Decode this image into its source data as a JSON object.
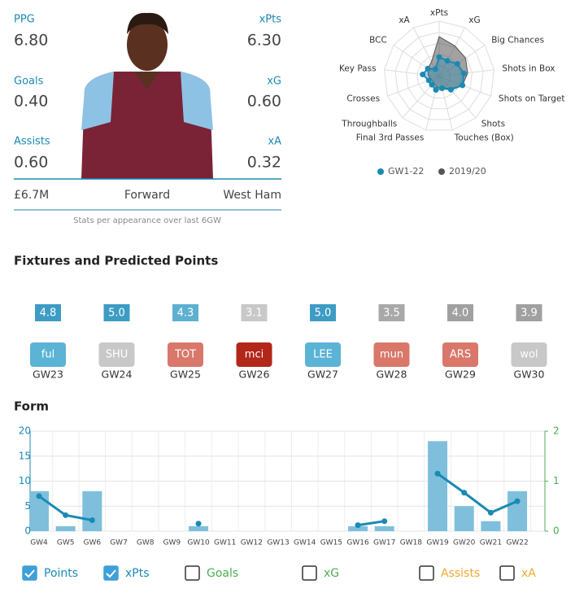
{
  "stats": [
    {
      "label": "PPG",
      "value": "6.80"
    },
    {
      "label": "xPts",
      "value": "6.30"
    },
    {
      "label": "Goals",
      "value": "0.40"
    },
    {
      "label": "xG",
      "value": "0.60"
    },
    {
      "label": "Assists",
      "value": "0.60"
    },
    {
      "label": "xA",
      "value": "0.32"
    }
  ],
  "player": {
    "price": "£6.7M",
    "position": "Forward",
    "team": "West Ham",
    "note": "Stats per appearance over last 6GW"
  },
  "fixtures": {
    "title": "Fixtures and Predicted Points",
    "items": [
      {
        "points": "4.8",
        "points_color": "#3d9cc4",
        "opponent": "ful",
        "color": "#5bb3d5",
        "gw": "GW23"
      },
      {
        "points": "5.0",
        "points_color": "#3d9cc4",
        "opponent": "SHU",
        "color": "#c8c8c8",
        "gw": "GW24"
      },
      {
        "points": "4.3",
        "points_color": "#5eb0d0",
        "opponent": "TOT",
        "color": "#d9776b",
        "gw": "GW25"
      },
      {
        "points": "3.1",
        "points_color": "#c8c8c8",
        "opponent": "mci",
        "color": "#b3261a",
        "gw": "GW26"
      },
      {
        "points": "5.0",
        "points_color": "#3d9cc4",
        "opponent": "LEE",
        "color": "#5bb3d5",
        "gw": "GW27"
      },
      {
        "points": "3.5",
        "points_color": "#a8a8a8",
        "opponent": "mun",
        "color": "#d9776b",
        "gw": "GW28"
      },
      {
        "points": "4.0",
        "points_color": "#a0a0a0",
        "opponent": "ARS",
        "color": "#d9776b",
        "gw": "GW29"
      },
      {
        "points": "3.9",
        "points_color": "#a0a0a0",
        "opponent": "wol",
        "color": "#c8c8c8",
        "gw": "GW30"
      }
    ]
  },
  "chart_data": [
    {
      "type": "radar",
      "axes": [
        "xPts",
        "xG",
        "Big Chances",
        "Shots in Box",
        "Shots on Target",
        "Shots",
        "Touches (Box)",
        "Final 3rd Passes",
        "Throughballs",
        "Crosses",
        "Key Pass",
        "BCC",
        "xA"
      ],
      "rlim": [
        0,
        100
      ],
      "series": [
        {
          "name": "GW1-22",
          "color": "#1a8ab4",
          "values": [
            35,
            32,
            40,
            45,
            45,
            32,
            22,
            25,
            20,
            20,
            30,
            25,
            15
          ]
        },
        {
          "name": "2019/20",
          "color": "#555555",
          "values": [
            72,
            62,
            58,
            52,
            45,
            30,
            20,
            20,
            15,
            15,
            20,
            25,
            30
          ]
        }
      ]
    },
    {
      "type": "bar_line",
      "title": "Form",
      "categories": [
        "GW4",
        "GW5",
        "GW6",
        "GW7",
        "GW8",
        "GW9",
        "GW10",
        "GW11",
        "GW12",
        "GW13",
        "GW14",
        "GW15",
        "GW16",
        "GW17",
        "GW18",
        "GW19",
        "GW20",
        "GW21",
        "GW22"
      ],
      "ylim": [
        0,
        20
      ],
      "yticks": [
        0,
        5,
        10,
        15,
        20
      ],
      "y2lim": [
        0,
        2
      ],
      "y2ticks": [
        0,
        1,
        2
      ],
      "grid": true,
      "series": [
        {
          "name": "Points",
          "type": "bar",
          "color": "#1a8ab4",
          "bar_color": "#7fbfdc",
          "checked": true,
          "values": [
            8,
            1,
            8,
            null,
            null,
            null,
            1,
            null,
            null,
            null,
            null,
            null,
            1,
            1,
            null,
            18,
            5,
            2,
            8
          ]
        },
        {
          "name": "xPts",
          "type": "line",
          "axis": "y2",
          "color": "#1a8ab4",
          "checked": true,
          "values": [
            0.7,
            0.32,
            0.22,
            null,
            null,
            null,
            0.15,
            null,
            null,
            null,
            null,
            null,
            0.12,
            0.2,
            null,
            1.15,
            0.77,
            0.37,
            0.6
          ]
        }
      ],
      "other_toggles": [
        {
          "name": "Goals",
          "color": "#4caf50",
          "checked": false
        },
        {
          "name": "xG",
          "color": "#4caf50",
          "checked": false
        },
        {
          "name": "Assists",
          "color": "#f0a830",
          "checked": false
        },
        {
          "name": "xA",
          "color": "#f0a830",
          "checked": false
        }
      ]
    }
  ]
}
